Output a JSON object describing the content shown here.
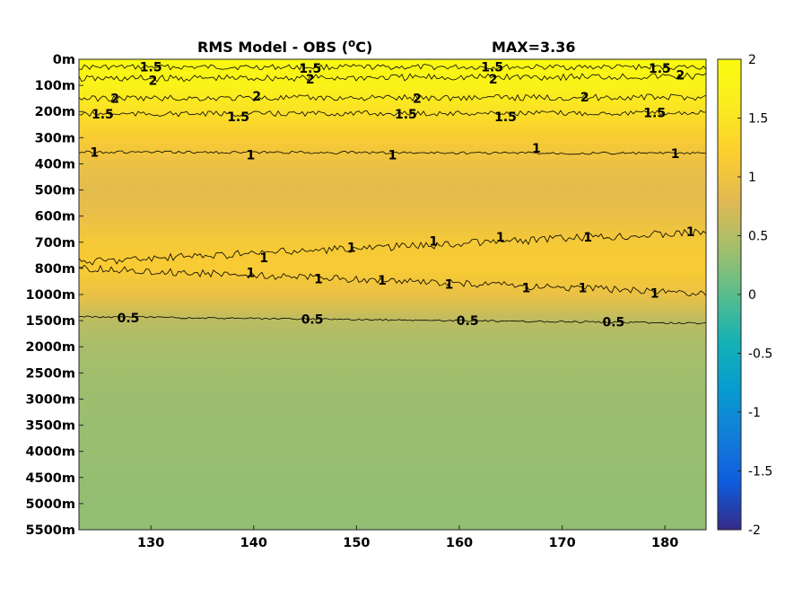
{
  "chart_data": {
    "type": "heatmap",
    "title": "RMS Model - OBS (",
    "title_superscript": "o",
    "title_unit_suffix": "C)",
    "annotation": "MAX=3.36",
    "x_ticks": [
      "130",
      "140",
      "150",
      "160",
      "170",
      "180"
    ],
    "x_tick_values": [
      130,
      140,
      150,
      160,
      170,
      180
    ],
    "xlim": [
      123,
      184
    ],
    "y_ticks": [
      "0m",
      "100m",
      "200m",
      "300m",
      "400m",
      "500m",
      "600m",
      "700m",
      "800m",
      "1000m",
      "1500m",
      "2000m",
      "2500m",
      "3000m",
      "3500m",
      "4000m",
      "4500m",
      "5000m",
      "5500m"
    ],
    "colorbar": {
      "ticks": [
        "2",
        "1.5",
        "1",
        "0.5",
        "0",
        "-0.5",
        "-1",
        "-1.5",
        "-2"
      ],
      "tick_values": [
        2,
        1.5,
        1,
        0.5,
        0,
        -0.5,
        -1,
        -1.5,
        -2
      ],
      "clim": [
        -2,
        2
      ],
      "colormap": "parula"
    },
    "field_profile": [
      {
        "level": 0,
        "value": 1.95
      },
      {
        "level": 1,
        "value": 1.75
      },
      {
        "level": 2,
        "value": 1.45
      },
      {
        "level": 3,
        "value": 1.15
      },
      {
        "level": 4,
        "value": 0.95
      },
      {
        "level": 5,
        "value": 0.85
      },
      {
        "level": 6,
        "value": 0.92
      },
      {
        "level": 7,
        "value": 1.1
      },
      {
        "level": 8,
        "value": 1.15
      },
      {
        "level": 9,
        "value": 0.95
      },
      {
        "level": 10,
        "value": 0.55
      },
      {
        "level": 11,
        "value": 0.42
      },
      {
        "level": 12,
        "value": 0.38
      },
      {
        "level": 13,
        "value": 0.35
      },
      {
        "level": 18,
        "value": 0.3
      }
    ],
    "contours": [
      {
        "value": 2,
        "labels": [
          {
            "text": "2",
            "x": 130.2,
            "level": 0.8
          },
          {
            "text": "2",
            "x": 145.5,
            "level": 0.75
          },
          {
            "text": "2",
            "x": 163.3,
            "level": 0.75
          },
          {
            "text": "2",
            "x": 181.5,
            "level": 0.6
          },
          {
            "text": "2",
            "x": 126.5,
            "level": 1.5
          },
          {
            "text": "2",
            "x": 140.3,
            "level": 1.4
          },
          {
            "text": "2",
            "x": 155.9,
            "level": 1.5
          },
          {
            "text": "2",
            "x": 172.2,
            "level": 1.45
          }
        ]
      },
      {
        "value": 1.5,
        "labels": [
          {
            "text": "1.5",
            "x": 130.0,
            "level": 0.3
          },
          {
            "text": "1.5",
            "x": 145.5,
            "level": 0.35
          },
          {
            "text": "1.5",
            "x": 163.2,
            "level": 0.3
          },
          {
            "text": "1.5",
            "x": 179.5,
            "level": 0.35
          },
          {
            "text": "1.5",
            "x": 125.3,
            "level": 2.1
          },
          {
            "text": "1.5",
            "x": 138.5,
            "level": 2.2
          },
          {
            "text": "1.5",
            "x": 154.8,
            "level": 2.1
          },
          {
            "text": "1.5",
            "x": 164.5,
            "level": 2.2
          },
          {
            "text": "1.5",
            "x": 179.0,
            "level": 2.05
          }
        ]
      },
      {
        "value": 1,
        "labels": [
          {
            "text": "1",
            "x": 124.5,
            "level": 3.55
          },
          {
            "text": "1",
            "x": 139.7,
            "level": 3.65
          },
          {
            "text": "1",
            "x": 153.5,
            "level": 3.65
          },
          {
            "text": "1",
            "x": 167.5,
            "level": 3.4
          },
          {
            "text": "1",
            "x": 181.0,
            "level": 3.6
          },
          {
            "text": "1",
            "x": 141.0,
            "level": 7.6
          },
          {
            "text": "1",
            "x": 149.5,
            "level": 7.2
          },
          {
            "text": "1",
            "x": 157.5,
            "level": 6.95
          },
          {
            "text": "1",
            "x": 164.0,
            "level": 6.8
          },
          {
            "text": "1",
            "x": 172.5,
            "level": 6.8
          },
          {
            "text": "1",
            "x": 182.5,
            "level": 6.6
          },
          {
            "text": "1",
            "x": 139.7,
            "level": 8.15
          },
          {
            "text": "1",
            "x": 146.3,
            "level": 8.4
          },
          {
            "text": "1",
            "x": 152.5,
            "level": 8.45
          },
          {
            "text": "1",
            "x": 159.0,
            "level": 8.6
          },
          {
            "text": "1",
            "x": 166.5,
            "level": 8.75
          },
          {
            "text": "1",
            "x": 172.0,
            "level": 8.75
          },
          {
            "text": "1",
            "x": 179.0,
            "level": 8.95
          }
        ]
      },
      {
        "value": 0.5,
        "labels": [
          {
            "text": "0.5",
            "x": 127.8,
            "level": 9.9
          },
          {
            "text": "0.5",
            "x": 145.7,
            "level": 9.95
          },
          {
            "text": "0.5",
            "x": 160.8,
            "level": 10.0
          },
          {
            "text": "0.5",
            "x": 175.0,
            "level": 10.05
          }
        ]
      }
    ]
  }
}
